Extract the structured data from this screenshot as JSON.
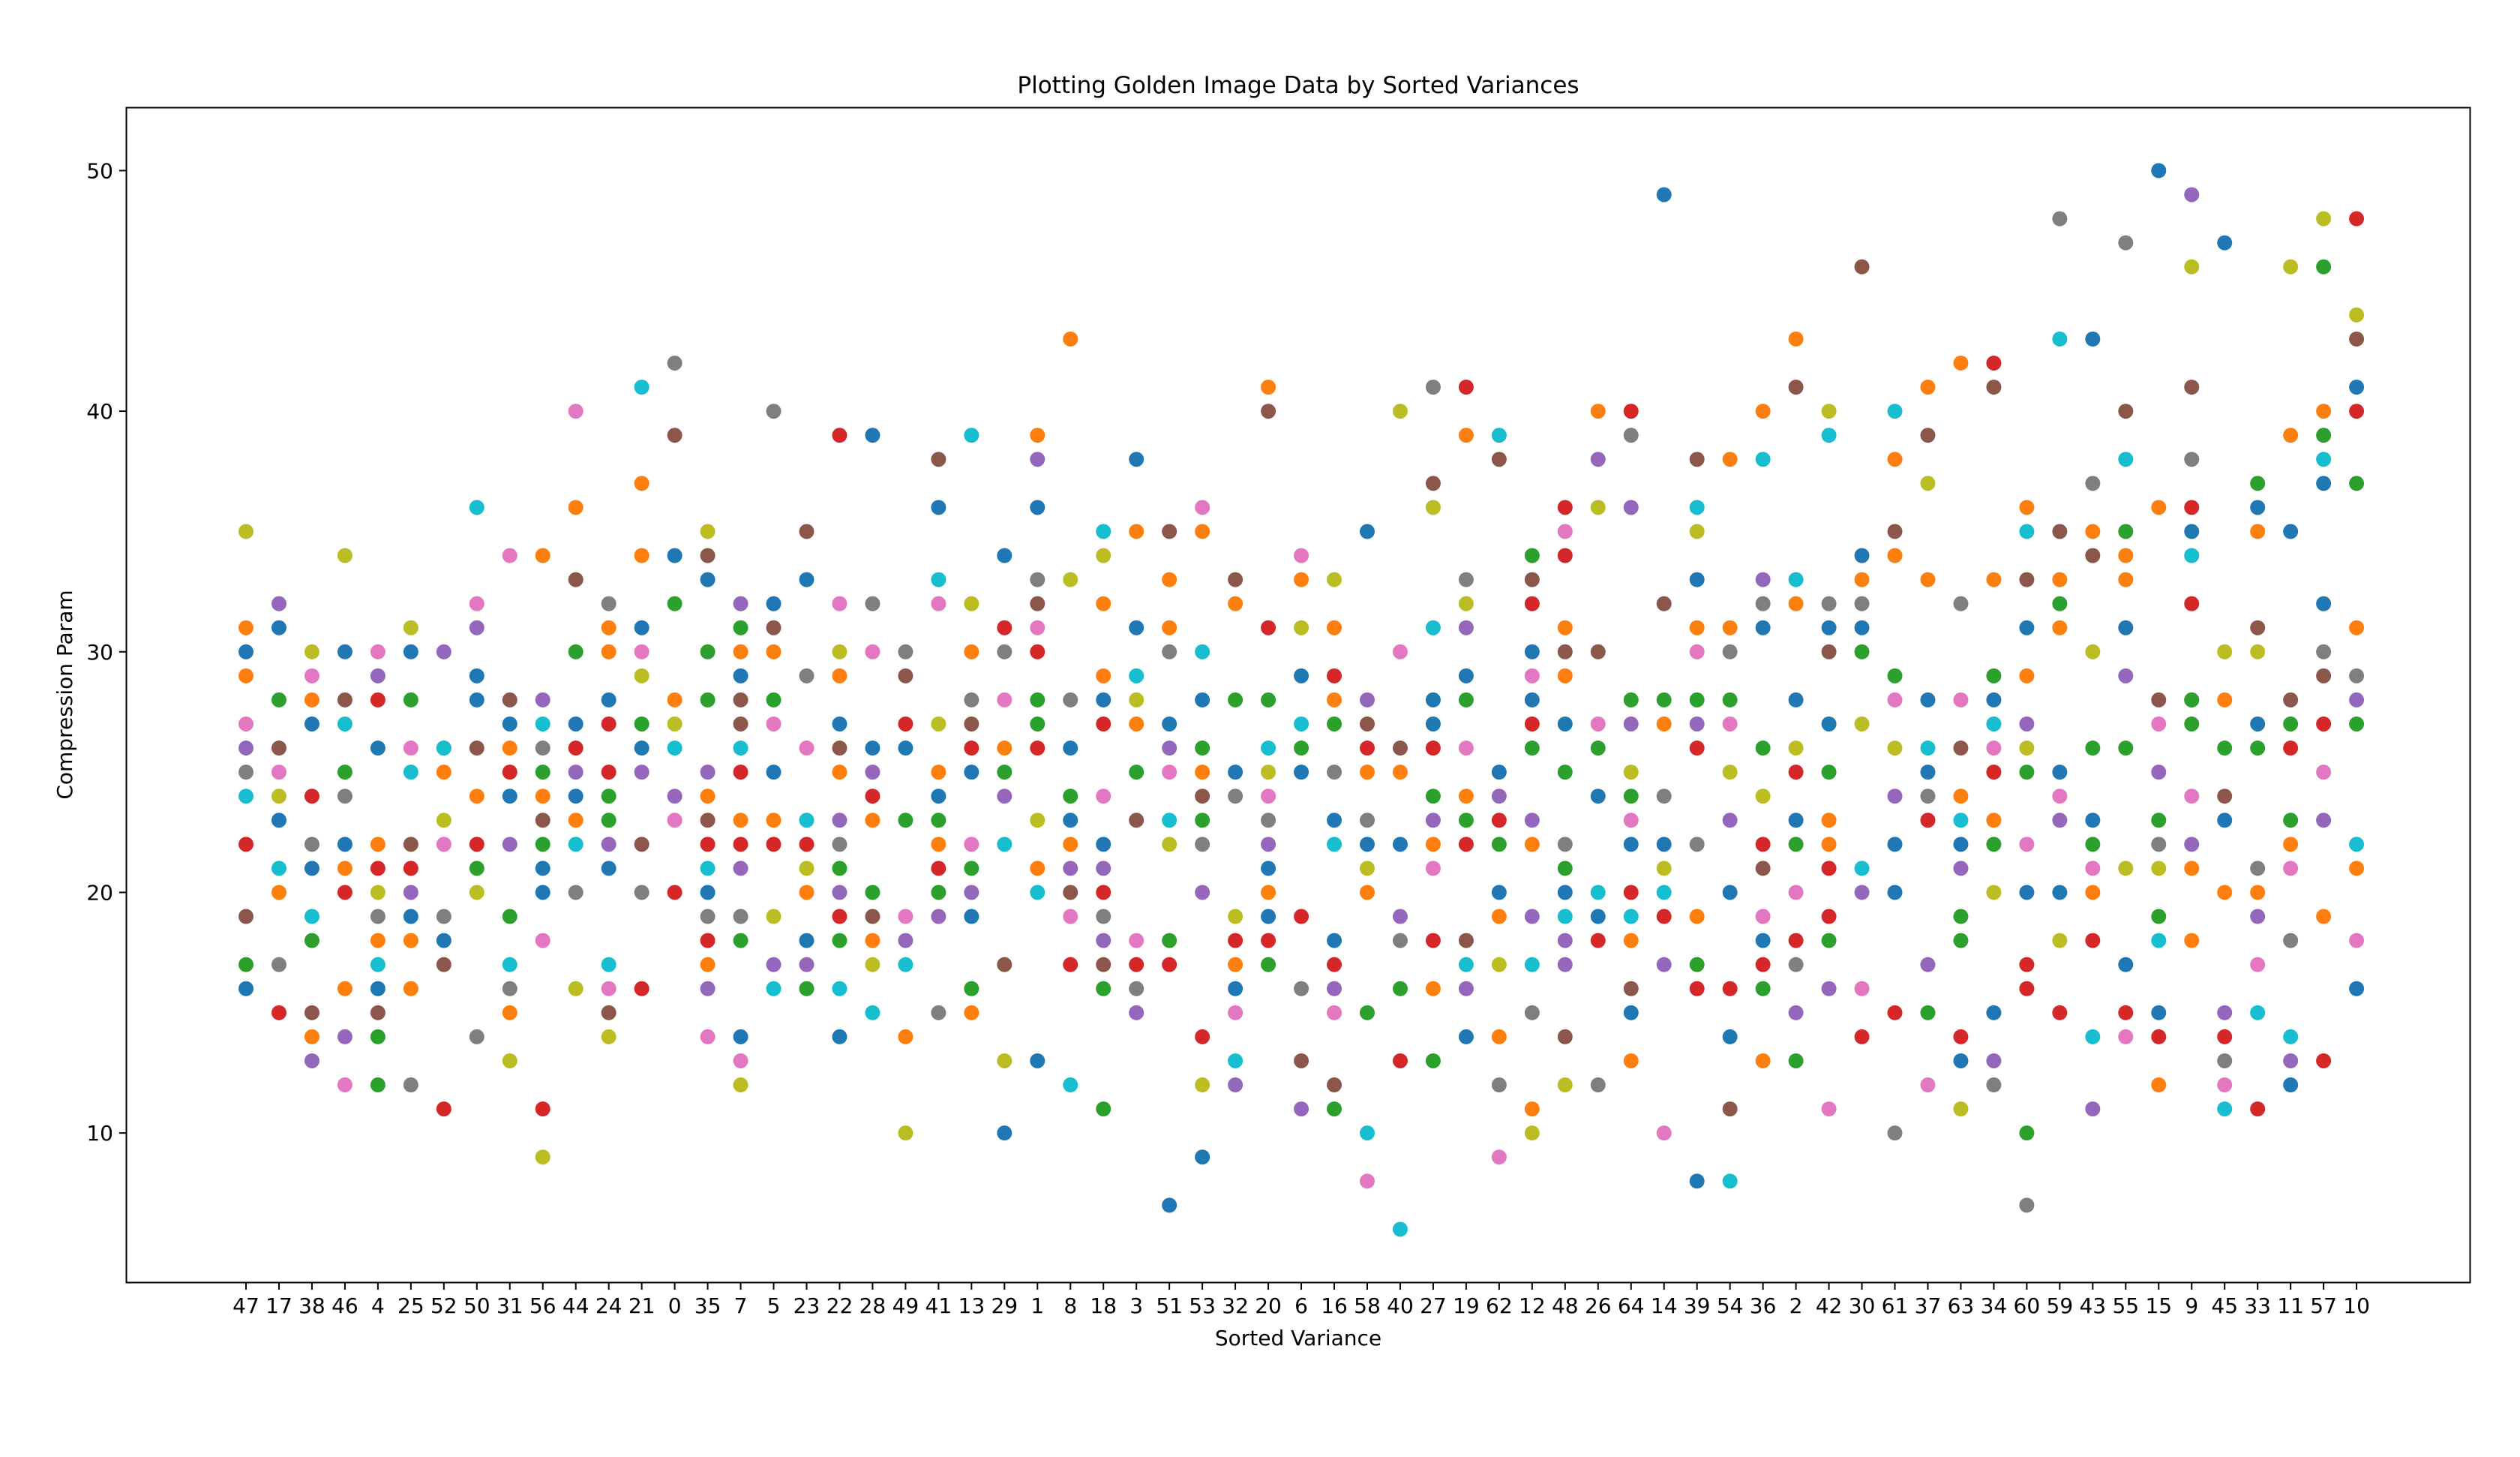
{
  "chart_data": {
    "type": "scatter",
    "title": "Plotting Golden Image Data by Sorted Variances",
    "xlabel": "Sorted Variance",
    "ylabel": "Compression Param",
    "categories": [
      "47",
      "17",
      "38",
      "46",
      "4",
      "25",
      "52",
      "50",
      "31",
      "56",
      "44",
      "24",
      "21",
      "0",
      "35",
      "7",
      "5",
      "23",
      "22",
      "28",
      "49",
      "41",
      "13",
      "29",
      "1",
      "8",
      "18",
      "3",
      "51",
      "53",
      "32",
      "20",
      "6",
      "16",
      "58",
      "40",
      "27",
      "19",
      "62",
      "12",
      "48",
      "26",
      "64",
      "14",
      "39",
      "54",
      "36",
      "2",
      "42",
      "30",
      "61",
      "37",
      "63",
      "34",
      "60",
      "59",
      "43",
      "55",
      "15",
      "9",
      "45",
      "33",
      "11",
      "57",
      "10"
    ],
    "ylim": [
      3.8,
      52.6
    ],
    "yticks": [
      10,
      20,
      30,
      40,
      50
    ],
    "grid": false,
    "palette": [
      "#1f77b4",
      "#ff7f0e",
      "#2ca02c",
      "#d62728",
      "#9467bd",
      "#8c564b",
      "#e377c2",
      "#7f7f7f",
      "#bcbd22",
      "#17becf"
    ],
    "values": [
      [
        30,
        29,
        17,
        22,
        26,
        19,
        27,
        25,
        35,
        24,
        16,
        31
      ],
      [
        31,
        20,
        28,
        15,
        32,
        26,
        25,
        17,
        24,
        21,
        23
      ],
      [
        27,
        28,
        18,
        24,
        13,
        15,
        29,
        22,
        30,
        19,
        21,
        14
      ],
      [
        22,
        16,
        25,
        20,
        14,
        28,
        12,
        24,
        34,
        27,
        30,
        21
      ],
      [
        16,
        22,
        14,
        21,
        29,
        15,
        30,
        19,
        20,
        17,
        26,
        18,
        12,
        28
      ],
      [
        30,
        16,
        28,
        21,
        20,
        22,
        26,
        12,
        31,
        25,
        19,
        18
      ],
      [
        18,
        25,
        26,
        11,
        30,
        17,
        22,
        19,
        23,
        26
      ],
      [
        28,
        24,
        21,
        22,
        31,
        26,
        32,
        14,
        20,
        36,
        29
      ],
      [
        27,
        26,
        19,
        25,
        22,
        28,
        34,
        16,
        13,
        17,
        24,
        15
      ],
      [
        20,
        24,
        22,
        11,
        28,
        23,
        18,
        26,
        9,
        27,
        21,
        34,
        25
      ],
      [
        27,
        36,
        30,
        26,
        25,
        33,
        40,
        20,
        16,
        22,
        24,
        23
      ],
      [
        21,
        30,
        24,
        25,
        22,
        15,
        16,
        32,
        14,
        17,
        28,
        31,
        23,
        27
      ],
      [
        26,
        37,
        27,
        16,
        25,
        22,
        30,
        20,
        29,
        41,
        31,
        34
      ],
      [
        34,
        28,
        32,
        20,
        24,
        39,
        23,
        42,
        27,
        26
      ],
      [
        20,
        24,
        28,
        18,
        16,
        34,
        14,
        19,
        35,
        21,
        33,
        17,
        30,
        22,
        25,
        23
      ],
      [
        29,
        30,
        18,
        25,
        32,
        28,
        13,
        19,
        12,
        26,
        14,
        23,
        31,
        22,
        21,
        27
      ],
      [
        25,
        30,
        28,
        22,
        17,
        31,
        27,
        40,
        19,
        16,
        32,
        23
      ],
      [
        33,
        20,
        16,
        22,
        17,
        35,
        26,
        29,
        21,
        23,
        18
      ],
      [
        27,
        29,
        18,
        19,
        20,
        26,
        32,
        22,
        30,
        16,
        14,
        25,
        21,
        39,
        23
      ],
      [
        26,
        23,
        20,
        24,
        25,
        19,
        30,
        32,
        17,
        15,
        39,
        18
      ],
      [
        26,
        14,
        23,
        27,
        18,
        29,
        19,
        30,
        10,
        17
      ],
      [
        24,
        25,
        23,
        21,
        19,
        38,
        32,
        15,
        27,
        33,
        36,
        22,
        20
      ],
      [
        25,
        30,
        16,
        26,
        20,
        27,
        22,
        28,
        32,
        39,
        19,
        15,
        21
      ],
      [
        34,
        26,
        25,
        31,
        24,
        17,
        28,
        30,
        13,
        22,
        10
      ],
      [
        36,
        21,
        28,
        26,
        38,
        32,
        31,
        33,
        23,
        20,
        13,
        39,
        27,
        30
      ],
      [
        26,
        22,
        24,
        17,
        21,
        20,
        19,
        28,
        33,
        12,
        23,
        43
      ],
      [
        22,
        29,
        16,
        20,
        18,
        17,
        24,
        19,
        34,
        35,
        28,
        32,
        11,
        27,
        21
      ],
      [
        38,
        35,
        25,
        17,
        15,
        23,
        18,
        16,
        28,
        29,
        31,
        27
      ],
      [
        27,
        31,
        18,
        17,
        26,
        35,
        25,
        30,
        22,
        23,
        7,
        33
      ],
      [
        28,
        35,
        23,
        14,
        20,
        24,
        36,
        22,
        12,
        30,
        9,
        25,
        26
      ],
      [
        25,
        32,
        28,
        18,
        12,
        33,
        15,
        24,
        19,
        13,
        16,
        17
      ],
      [
        19,
        41,
        28,
        18,
        22,
        40,
        24,
        23,
        25,
        26,
        21,
        20,
        17,
        31
      ],
      [
        25,
        33,
        26,
        19,
        11,
        13,
        34,
        16,
        31,
        27,
        29
      ],
      [
        23,
        28,
        27,
        17,
        16,
        12,
        15,
        25,
        33,
        22,
        18,
        31,
        11,
        29
      ],
      [
        35,
        20,
        15,
        26,
        28,
        27,
        8,
        23,
        21,
        10,
        22,
        25
      ],
      [
        22,
        25,
        16,
        13,
        19,
        26,
        30,
        18,
        40,
        6
      ],
      [
        28,
        22,
        24,
        18,
        23,
        37,
        21,
        41,
        36,
        31,
        27,
        16,
        13,
        26
      ],
      [
        29,
        39,
        28,
        22,
        16,
        18,
        26,
        33,
        32,
        17,
        14,
        24,
        23,
        41,
        31
      ],
      [
        20,
        14,
        22,
        23,
        24,
        38,
        9,
        12,
        17,
        39,
        25,
        19
      ],
      [
        28,
        22,
        26,
        27,
        23,
        33,
        29,
        15,
        10,
        17,
        30,
        11,
        34,
        32,
        19
      ],
      [
        27,
        31,
        25,
        34,
        18,
        30,
        35,
        22,
        12,
        19,
        20,
        29,
        21,
        36,
        17,
        14
      ],
      [
        24,
        40,
        26,
        18,
        38,
        30,
        27,
        12,
        36,
        20,
        19
      ],
      [
        22,
        18,
        28,
        20,
        36,
        16,
        23,
        39,
        25,
        19,
        15,
        13,
        24,
        40,
        27
      ],
      [
        49,
        27,
        28,
        19,
        17,
        32,
        10,
        24,
        21,
        20,
        22
      ],
      [
        33,
        31,
        28,
        16,
        27,
        38,
        30,
        22,
        35,
        36,
        8,
        19,
        17,
        26
      ],
      [
        20,
        31,
        28,
        16,
        23,
        11,
        27,
        30,
        25,
        8,
        14,
        38
      ],
      [
        31,
        40,
        26,
        17,
        33,
        21,
        19,
        32,
        24,
        38,
        18,
        13,
        16,
        22
      ],
      [
        28,
        43,
        22,
        25,
        15,
        41,
        20,
        17,
        26,
        33,
        23,
        32,
        13,
        18
      ],
      [
        27,
        22,
        25,
        19,
        16,
        30,
        11,
        32,
        40,
        39,
        31,
        23,
        18,
        21
      ],
      [
        31,
        33,
        30,
        14,
        20,
        46,
        16,
        32,
        27,
        21,
        34
      ],
      [
        22,
        38,
        29,
        15,
        24,
        35,
        28,
        10,
        26,
        40,
        20,
        34
      ],
      [
        28,
        41,
        15,
        23,
        17,
        39,
        12,
        24,
        37,
        26,
        25,
        33
      ],
      [
        22,
        24,
        19,
        14,
        21,
        26,
        28,
        32,
        11,
        23,
        13,
        42,
        18
      ],
      [
        28,
        33,
        22,
        25,
        13,
        41,
        26,
        12,
        20,
        27,
        15,
        23,
        29,
        42
      ],
      [
        20,
        36,
        25,
        16,
        27,
        33,
        22,
        7,
        26,
        35,
        31,
        29,
        10,
        17
      ],
      [
        20,
        31,
        32,
        15,
        23,
        35,
        24,
        48,
        18,
        43,
        25,
        33
      ],
      [
        23,
        35,
        26,
        18,
        11,
        34,
        21,
        37,
        30,
        14,
        43,
        20,
        22
      ],
      [
        31,
        33,
        26,
        15,
        29,
        40,
        14,
        47,
        21,
        38,
        17,
        34,
        35
      ],
      [
        50,
        12,
        19,
        14,
        25,
        28,
        27,
        22,
        21,
        18,
        15,
        36,
        23
      ],
      [
        28,
        18,
        28,
        32,
        22,
        41,
        24,
        38,
        46,
        34,
        35,
        21,
        27,
        36,
        49
      ],
      [
        47,
        28,
        26,
        14,
        15,
        24,
        12,
        13,
        30,
        11,
        23,
        20
      ],
      [
        36,
        35,
        26,
        11,
        19,
        31,
        17,
        21,
        30,
        15,
        27,
        20,
        37
      ],
      [
        35,
        39,
        27,
        26,
        13,
        28,
        21,
        18,
        46,
        14,
        12,
        22,
        23
      ],
      [
        37,
        40,
        46,
        27,
        23,
        29,
        25,
        30,
        48,
        38,
        32,
        19,
        39,
        13
      ],
      [
        41,
        21,
        37,
        40,
        28,
        43,
        18,
        29,
        44,
        22,
        16,
        31,
        27,
        48
      ]
    ]
  }
}
